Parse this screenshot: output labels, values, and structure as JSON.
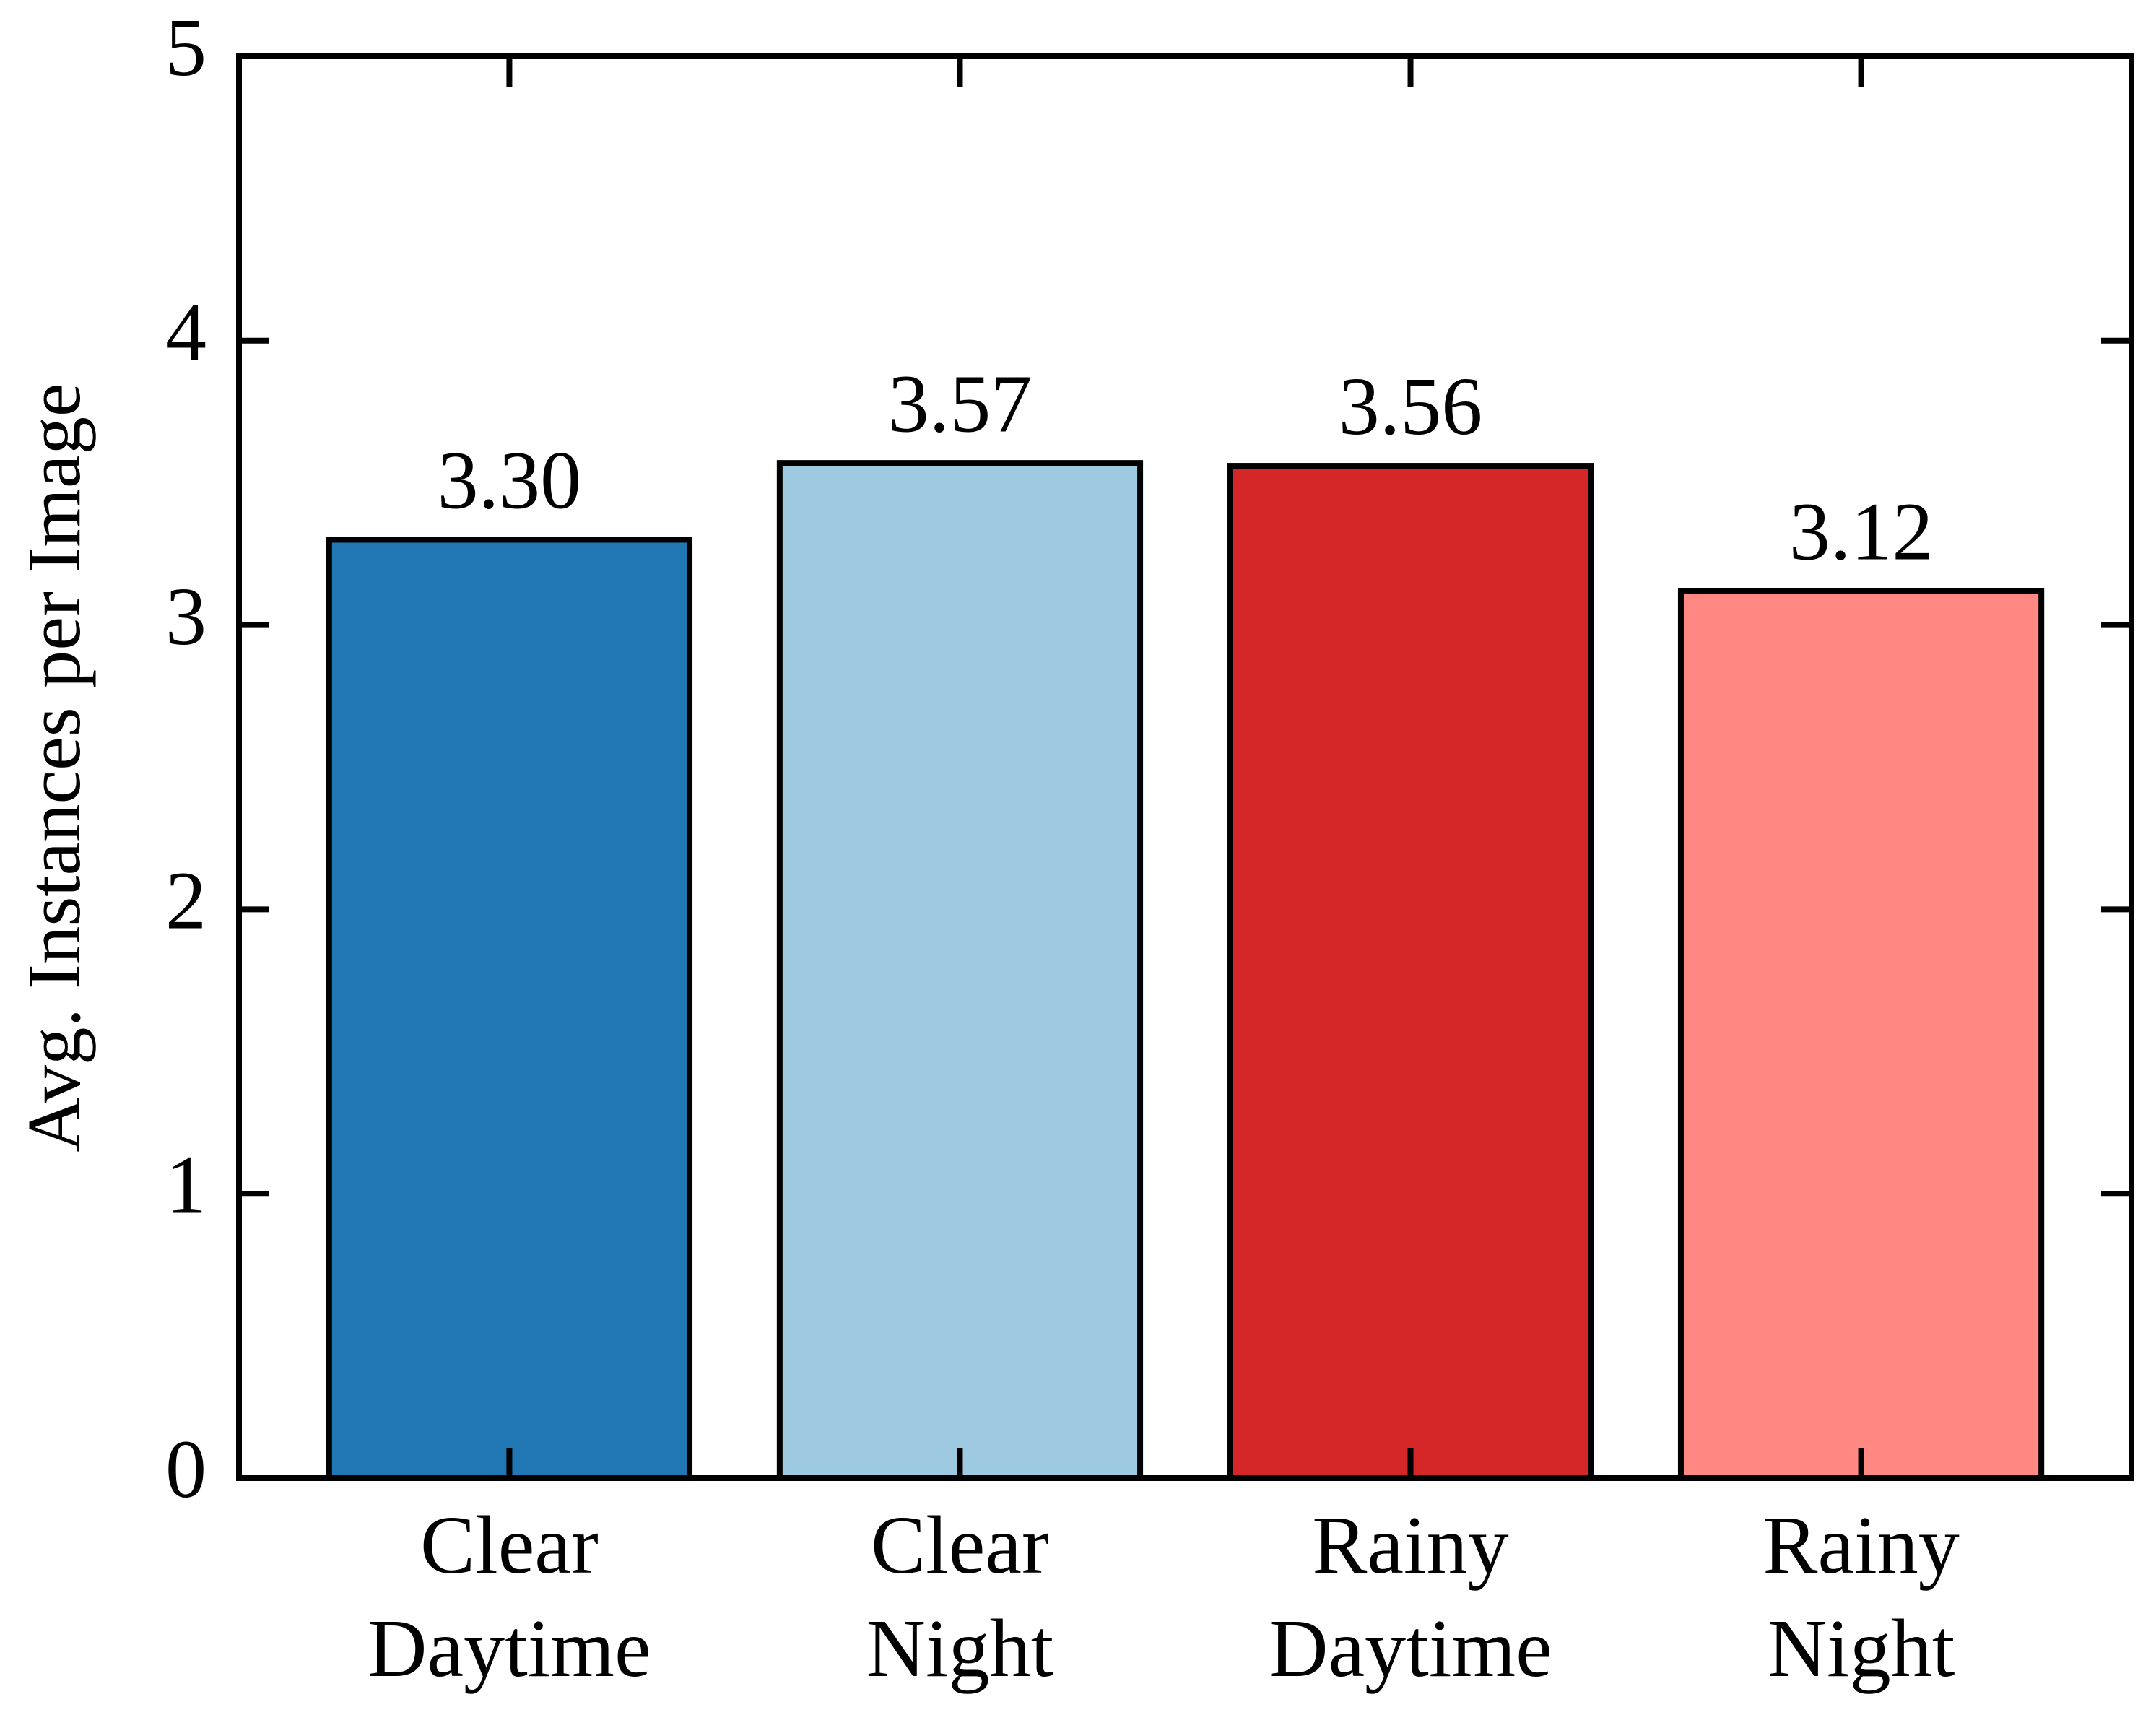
{
  "chart_data": {
    "type": "bar",
    "y_label": "Avg. Instances per Image",
    "categories": [
      "Clear\nDaytime",
      "Clear\nNight",
      "Rainy\nDaytime",
      "Rainy\nNight"
    ],
    "values": [
      3.3,
      3.57,
      3.56,
      3.12
    ],
    "value_labels": [
      "3.30",
      "3.57",
      "3.56",
      "3.12"
    ],
    "colors": [
      "#2077b4",
      "#9ecae1",
      "#d62728",
      "#ff8882"
    ],
    "ylim": [
      0,
      5
    ],
    "yticks": [
      0,
      1,
      2,
      3,
      4,
      5
    ]
  }
}
